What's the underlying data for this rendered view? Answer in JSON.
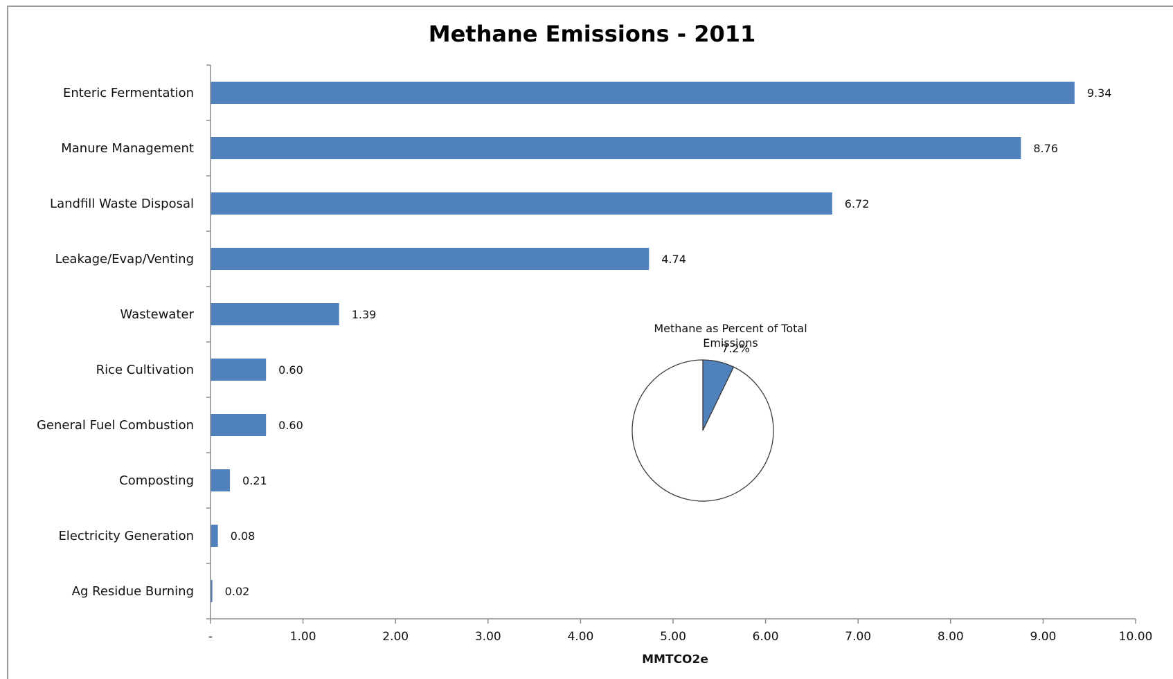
{
  "chart_data": [
    {
      "type": "bar",
      "orientation": "horizontal",
      "title": "Methane Emissions - 2011",
      "xlabel": "MMTCO2e",
      "ylabel": "",
      "xlim": [
        0,
        10
      ],
      "x_tick_labels": [
        "-",
        "1.00",
        "2.00",
        "3.00",
        "4.00",
        "5.00",
        "6.00",
        "7.00",
        "8.00",
        "9.00",
        "10.00"
      ],
      "categories": [
        "Enteric Fermentation",
        "Manure Management",
        "Landfill Waste Disposal",
        "Leakage/Evap/Venting",
        "Wastewater",
        "Rice Cultivation",
        "General Fuel Combustion",
        "Composting",
        "Electricity Generation",
        "Ag Residue Burning"
      ],
      "values": [
        9.34,
        8.76,
        6.72,
        4.74,
        1.39,
        0.6,
        0.6,
        0.21,
        0.08,
        0.02
      ],
      "value_labels": [
        "9.34",
        "8.76",
        "6.72",
        "4.74",
        "1.39",
        "0.60",
        "0.60",
        "0.21",
        "0.08",
        "0.02"
      ],
      "bar_color": "#4F81BD",
      "grid": false,
      "legend": "none"
    },
    {
      "type": "pie",
      "title": "Methane as Percent of Total Emissions",
      "title_lines": [
        "Methane as Percent of Total",
        "Emissions"
      ],
      "slices": [
        {
          "label": "7.2%",
          "value": 7.2,
          "color": "#4F81BD"
        },
        {
          "label": "",
          "value": 92.8,
          "color": "#FFFFFF"
        }
      ]
    }
  ]
}
